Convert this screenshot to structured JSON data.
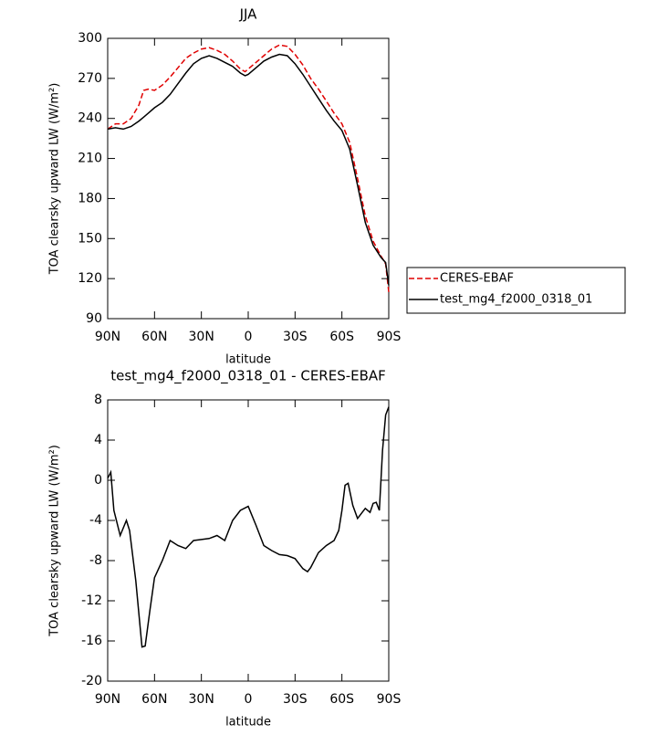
{
  "chart_data": [
    {
      "type": "line",
      "title": "JJA",
      "xlabel": "latitude",
      "ylabel": "TOA clearsky upward LW (W/m²)",
      "x": [
        90,
        85,
        80,
        75,
        70,
        67,
        64,
        60,
        55,
        50,
        45,
        40,
        35,
        30,
        25,
        20,
        15,
        10,
        5,
        2,
        0,
        -5,
        -10,
        -15,
        -20,
        -25,
        -30,
        -35,
        -40,
        -45,
        -50,
        -55,
        -60,
        -65,
        -70,
        -75,
        -80,
        -85,
        -88,
        -90
      ],
      "series": [
        {
          "name": "CERES-EBAF",
          "color": "#e00000",
          "dashed": true,
          "values": [
            232,
            236,
            236,
            240,
            250,
            261,
            262,
            261,
            265,
            271,
            278,
            285,
            289,
            292,
            293,
            291,
            288,
            283,
            277,
            275,
            277,
            282,
            287,
            292,
            295,
            294,
            288,
            280,
            270,
            262,
            253,
            244,
            236,
            222,
            195,
            167,
            148,
            137,
            131,
            110
          ]
        },
        {
          "name": "test_mg4_f2000_0318_01",
          "color": "#000000",
          "dashed": false,
          "values": [
            232,
            233,
            232,
            234,
            238,
            241,
            244,
            248,
            252,
            258,
            266,
            274,
            281,
            285,
            287,
            285,
            282,
            279,
            274,
            272,
            273,
            278,
            283,
            286,
            288,
            287,
            281,
            273,
            264,
            255,
            246,
            238,
            231,
            217,
            190,
            162,
            145,
            136,
            132,
            115
          ]
        }
      ],
      "xlim": [
        90,
        -90
      ],
      "xticks": [
        {
          "value": 90,
          "label": "90N"
        },
        {
          "value": 60,
          "label": "60N"
        },
        {
          "value": 30,
          "label": "30N"
        },
        0,
        {
          "value": -30,
          "label": "30S"
        },
        {
          "value": -60,
          "label": "60S"
        },
        {
          "value": -90,
          "label": "90S"
        }
      ],
      "ylim": [
        90,
        300
      ],
      "yticks": [
        90,
        120,
        150,
        180,
        210,
        240,
        270,
        300
      ]
    },
    {
      "type": "line",
      "title": "test_mg4_f2000_0318_01 - CERES-EBAF",
      "xlabel": "latitude",
      "ylabel": "TOA clearsky upward LW (W/m²)",
      "x": [
        90,
        88,
        86,
        82,
        78,
        76,
        72,
        68,
        66,
        63,
        60,
        55,
        50,
        45,
        40,
        35,
        30,
        25,
        20,
        15,
        10,
        5,
        0,
        -5,
        -10,
        -15,
        -20,
        -25,
        -30,
        -35,
        -38,
        -40,
        -45,
        -50,
        -55,
        -58,
        -60,
        -62,
        -64,
        -67,
        -70,
        -73,
        -75,
        -78,
        -80,
        -82,
        -84,
        -86,
        -88,
        -90
      ],
      "values": [
        0.2,
        0.8,
        -3,
        -5.5,
        -4,
        -5,
        -10,
        -16.6,
        -16.5,
        -13,
        -9.7,
        -8,
        -6,
        -6.5,
        -6.8,
        -6,
        -5.9,
        -5.8,
        -5.5,
        -6,
        -4,
        -3,
        -2.6,
        -4.5,
        -6.5,
        -7,
        -7.4,
        -7.5,
        -7.8,
        -8.8,
        -9.1,
        -8.7,
        -7.2,
        -6.5,
        -6,
        -5,
        -3,
        -0.5,
        -0.3,
        -2.5,
        -3.8,
        -3.2,
        -2.8,
        -3.2,
        -2.3,
        -2.2,
        -3,
        3,
        6.5,
        7.3
      ],
      "color": "#000000",
      "xlim": [
        90,
        -90
      ],
      "xticks": [
        {
          "value": 90,
          "label": "90N"
        },
        {
          "value": 60,
          "label": "60N"
        },
        {
          "value": 30,
          "label": "30N"
        },
        0,
        {
          "value": -30,
          "label": "30S"
        },
        {
          "value": -60,
          "label": "60S"
        },
        {
          "value": -90,
          "label": "90S"
        }
      ],
      "ylim": [
        -20,
        8
      ],
      "yticks": [
        -20,
        -16,
        -12,
        -8,
        -4,
        0,
        4,
        8
      ]
    }
  ]
}
